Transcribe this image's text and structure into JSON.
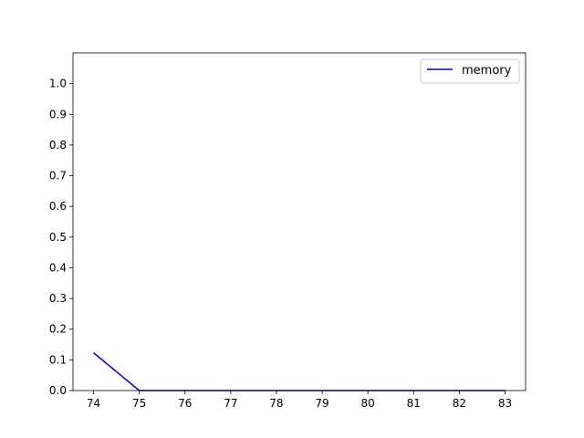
{
  "chart_data": {
    "type": "line",
    "title": "",
    "xlabel": "",
    "ylabel": "",
    "x": [
      74,
      75,
      76,
      77,
      78,
      79,
      80,
      81,
      82,
      83
    ],
    "series": [
      {
        "name": "memory",
        "color": "#0000cc",
        "values": [
          0.123,
          0,
          0,
          0,
          0,
          0,
          0,
          0,
          0,
          0
        ]
      }
    ],
    "xlim": [
      73.55,
      83.45
    ],
    "ylim": [
      0,
      1.1
    ],
    "xticks": [
      "74",
      "75",
      "76",
      "77",
      "78",
      "79",
      "80",
      "81",
      "82",
      "83"
    ],
    "yticks": [
      "0.0",
      "0.1",
      "0.2",
      "0.3",
      "0.4",
      "0.5",
      "0.6",
      "0.7",
      "0.8",
      "0.9",
      "1.0"
    ],
    "grid": false,
    "legend_position": "top-right"
  }
}
